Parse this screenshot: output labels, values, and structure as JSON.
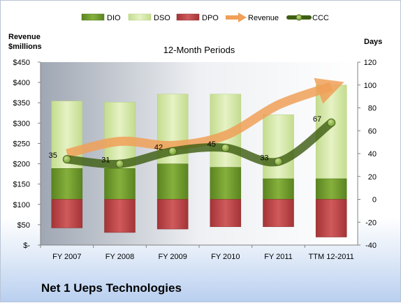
{
  "chart_data": {
    "type": "bar",
    "subtitle": "12-Month Periods",
    "company": "Net 1 Ueps Technologies",
    "y_left_label": [
      "Revenue",
      "$millions"
    ],
    "y_right_label": "Days",
    "y_left_range": [
      0,
      450
    ],
    "y_left_ticks": [
      "$-",
      "$50",
      "$100",
      "$150",
      "$200",
      "$250",
      "$300",
      "$350",
      "$400",
      "$450"
    ],
    "y_right_range": [
      -40,
      120
    ],
    "y_right_ticks": [
      "-40",
      "-20",
      "0",
      "20",
      "40",
      "60",
      "80",
      "100",
      "120"
    ],
    "grid": false,
    "legend_position": "top",
    "categories": [
      "FY 2007",
      "FY 2008",
      "FY 2009",
      "FY 2010",
      "FY 2011",
      "TTM 12-2011"
    ],
    "series": [
      {
        "name": "DIO",
        "kind": "bar",
        "axis": "right",
        "values": [
          27,
          27,
          31,
          28,
          18,
          18
        ],
        "color": "#6e9a2a"
      },
      {
        "name": "DSO",
        "kind": "bar",
        "axis": "right",
        "values": [
          59,
          58,
          61,
          64,
          56,
          82
        ],
        "color": "#d4e9a6"
      },
      {
        "name": "DPO",
        "kind": "bar",
        "axis": "right",
        "values": [
          -25,
          -29,
          -26,
          -24,
          -24,
          -33
        ],
        "color": "#c0484a"
      },
      {
        "name": "Revenue",
        "kind": "line",
        "axis": "left",
        "values": [
          225,
          255,
          245,
          270,
          345,
          390
        ],
        "color": "#f0a058"
      },
      {
        "name": "CCC",
        "kind": "line",
        "axis": "right",
        "values": [
          35,
          31,
          42,
          45,
          33,
          67
        ],
        "color": "#4a6a1a"
      }
    ],
    "ccc_labels": [
      "35",
      "31",
      "42",
      "45",
      "33",
      "67"
    ]
  }
}
